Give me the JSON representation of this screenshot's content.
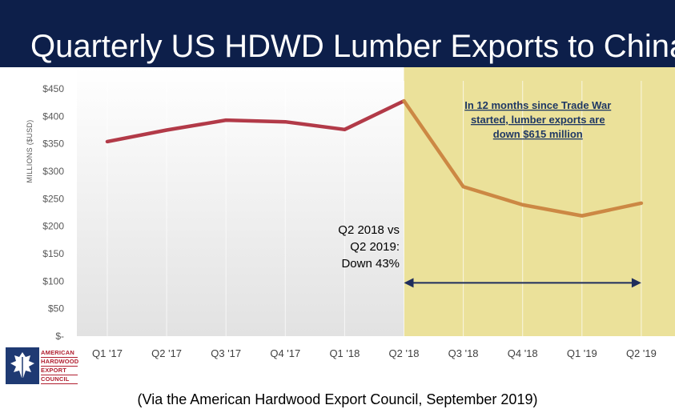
{
  "slide": {
    "title": "Quarterly US HDWD Lumber Exports to China",
    "source": "(Via the American Hardwood Export Council, September 2019)"
  },
  "logo": {
    "lines": [
      "AMERICAN",
      "HARDWOOD",
      "EXPORT",
      "COUNCIL"
    ],
    "icon": "oak-leaf-icon"
  },
  "colors": {
    "title_bar": "#0d1f4a",
    "pre_trade_war_line": "#b23a48",
    "post_trade_war_line": "#cc8844",
    "trade_war_highlight": "#ebe19a",
    "arrow": "#1f2d5c",
    "callout_text": "#1f3864"
  },
  "chart_data": {
    "type": "line",
    "categories": [
      "Q1 '17",
      "Q2 '17",
      "Q3 '17",
      "Q4 '17",
      "Q1 '18",
      "Q2 '18",
      "Q3 '18",
      "Q4 '18",
      "Q1 '19",
      "Q2 '19"
    ],
    "series": [
      {
        "values": [
          354,
          375,
          393,
          390,
          376,
          428,
          272,
          239,
          219,
          242
        ]
      }
    ],
    "ylabel": "MILLIONS ($USD)",
    "ylim": [
      0,
      450
    ],
    "yticks": [
      0,
      50,
      100,
      150,
      200,
      250,
      300,
      350,
      400,
      450
    ],
    "ytick_labels": [
      "$-",
      "$50",
      "$100",
      "$150",
      "$200",
      "$250",
      "$300",
      "$350",
      "$400",
      "$450"
    ],
    "grid": "vertical",
    "highlight_region": {
      "from": "Q2 '18",
      "to": "Q2 '19"
    },
    "annotations": {
      "callout": [
        "In 12 months since Trade War",
        "started, lumber exports are",
        "down $615 million"
      ],
      "comparison": [
        "Q2 2018 vs",
        "Q2 2019:",
        "Down 43%"
      ],
      "arrow": {
        "from": "Q2 '18",
        "to": "Q2 '19",
        "y": 100
      }
    }
  }
}
